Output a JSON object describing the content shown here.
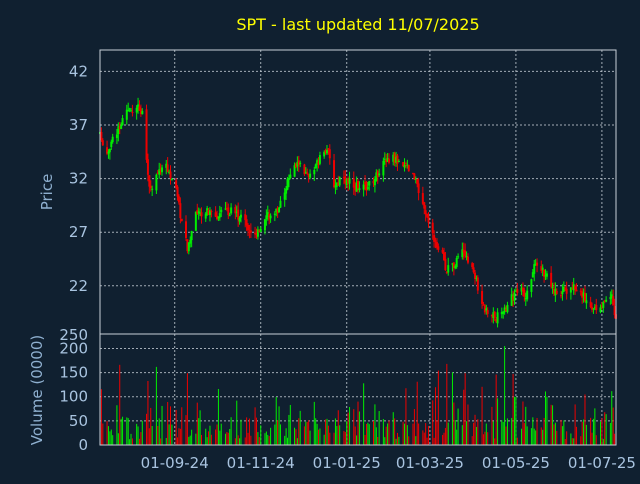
{
  "chart_data": {
    "type": "candlestick",
    "title": "SPT - last updated 11/07/2025",
    "colors": {
      "background": "#102030",
      "up": "#00ee00",
      "down": "#ee0000",
      "title": "#ffff00",
      "text": "#a9c4e0",
      "grid": "#c8d0d8"
    },
    "x_ticks": [
      "01-09-24",
      "01-11-24",
      "01-01-25",
      "01-03-25",
      "01-05-25",
      "01-07-25"
    ],
    "x_range": [
      "2024-07-10",
      "2025-07-11"
    ],
    "price_panel": {
      "ylabel": "Price",
      "ylim": [
        17.5,
        44
      ],
      "y_ticks": [
        22,
        27,
        32,
        37,
        42
      ],
      "bottom_tick": "250",
      "grid": true
    },
    "volume_panel": {
      "ylabel": "Volume (0000)",
      "ylim": [
        0,
        230
      ],
      "y_ticks": [
        0,
        50,
        100,
        150,
        200
      ],
      "grid": true
    },
    "price_trend": [
      [
        "2024-07-10",
        36.0
      ],
      [
        "2024-07-15",
        34.5
      ],
      [
        "2024-07-22",
        36.5
      ],
      [
        "2024-07-29",
        38.0
      ],
      [
        "2024-08-05",
        39.0
      ],
      [
        "2024-08-09",
        38.0
      ],
      [
        "2024-08-14",
        31.0
      ],
      [
        "2024-08-20",
        32.5
      ],
      [
        "2024-08-25",
        33.5
      ],
      [
        "2024-09-01",
        31.5
      ],
      [
        "2024-09-06",
        28.0
      ],
      [
        "2024-09-10",
        25.5
      ],
      [
        "2024-09-16",
        28.5
      ],
      [
        "2024-09-22",
        29.0
      ],
      [
        "2024-10-01",
        28.5
      ],
      [
        "2024-10-10",
        29.0
      ],
      [
        "2024-10-20",
        28.0
      ],
      [
        "2024-10-29",
        26.5
      ],
      [
        "2024-11-05",
        29.0
      ],
      [
        "2024-11-10",
        28.0
      ],
      [
        "2024-11-15",
        30.0
      ],
      [
        "2024-11-22",
        32.5
      ],
      [
        "2024-11-28",
        33.5
      ],
      [
        "2024-12-05",
        32.0
      ],
      [
        "2024-12-12",
        33.5
      ],
      [
        "2024-12-18",
        35.0
      ],
      [
        "2024-12-23",
        31.5
      ],
      [
        "2025-01-01",
        32.0
      ],
      [
        "2025-01-10",
        31.0
      ],
      [
        "2025-01-18",
        31.5
      ],
      [
        "2025-01-25",
        33.0
      ],
      [
        "2025-02-01",
        34.0
      ],
      [
        "2025-02-10",
        33.5
      ],
      [
        "2025-02-18",
        32.0
      ],
      [
        "2025-02-25",
        29.0
      ],
      [
        "2025-03-01",
        27.0
      ],
      [
        "2025-03-08",
        25.5
      ],
      [
        "2025-03-13",
        23.5
      ],
      [
        "2025-03-18",
        24.0
      ],
      [
        "2025-03-25",
        25.5
      ],
      [
        "2025-03-30",
        24.0
      ],
      [
        "2025-04-05",
        21.5
      ],
      [
        "2025-04-10",
        19.5
      ],
      [
        "2025-04-17",
        19.0
      ],
      [
        "2025-04-22",
        19.5
      ],
      [
        "2025-04-28",
        21.0
      ],
      [
        "2025-05-05",
        21.5
      ],
      [
        "2025-05-10",
        21.0
      ],
      [
        "2025-05-15",
        24.5
      ],
      [
        "2025-05-20",
        23.5
      ],
      [
        "2025-05-28",
        21.5
      ],
      [
        "2025-06-05",
        21.5
      ],
      [
        "2025-06-12",
        22.0
      ],
      [
        "2025-06-18",
        21.0
      ],
      [
        "2025-06-25",
        20.0
      ],
      [
        "2025-07-02",
        20.5
      ],
      [
        "2025-07-08",
        21.0
      ],
      [
        "2025-07-11",
        18.5
      ]
    ]
  }
}
